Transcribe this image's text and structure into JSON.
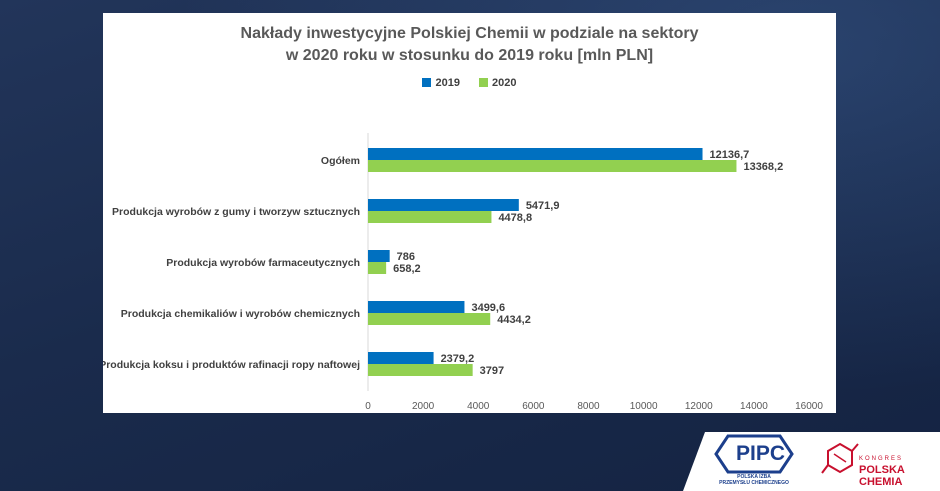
{
  "chart_data": {
    "type": "bar",
    "orientation": "horizontal",
    "title_lines": [
      "Nakłady inwestycyjne Polskiej Chemii w podziale na sektory",
      "w 2020 roku w stosunku do 2019 roku [mln PLN]"
    ],
    "categories": [
      "Ogółem",
      "Produkcja wyrobów z gumy i tworzyw sztucznych",
      "Produkcja wyrobów farmaceutycznych",
      "Produkcja chemikaliów i wyrobów chemicznych",
      "Produkcja koksu i produktów rafinacji ropy naftowej"
    ],
    "series": [
      {
        "name": "2019",
        "color": "#0070c0",
        "values": [
          12136.7,
          5471.9,
          786,
          3499.6,
          2379.2
        ],
        "labels": [
          "12136,7",
          "5471,9",
          "786",
          "3499,6",
          "2379,2"
        ]
      },
      {
        "name": "2020",
        "color": "#92d050",
        "values": [
          13368.2,
          4478.8,
          658.2,
          4434.2,
          3797
        ],
        "labels": [
          "13368,2",
          "4478,8",
          "658,2",
          "4434,2",
          "3797"
        ]
      }
    ],
    "xlim": [
      0,
      16000
    ],
    "xticks": [
      0,
      2000,
      4000,
      6000,
      8000,
      10000,
      12000,
      14000,
      16000
    ],
    "grid": false,
    "legend_position": "top"
  },
  "logos": {
    "pipc": {
      "name": "PIPC",
      "subtitle_lines": [
        "POLSKA IZBA",
        "PRZEMYSŁU CHEMICZNEGO"
      ],
      "color": "#1c3f8c"
    },
    "kongres": {
      "small_text": "KONGRES",
      "big_text": "POLSKA CHEMIA",
      "color": "#c8102e"
    }
  }
}
